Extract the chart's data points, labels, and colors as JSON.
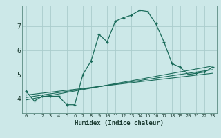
{
  "title": "",
  "xlabel": "Humidex (Indice chaleur)",
  "bg_color": "#cce8e8",
  "grid_color": "#aacccc",
  "line_color": "#1a6b5a",
  "xlim": [
    -0.5,
    23.5
  ],
  "ylim": [
    3.4,
    7.85
  ],
  "xticks": [
    0,
    1,
    2,
    3,
    4,
    5,
    6,
    7,
    8,
    9,
    10,
    11,
    12,
    13,
    14,
    15,
    16,
    17,
    18,
    19,
    20,
    21,
    22,
    23
  ],
  "yticks": [
    4,
    5,
    6,
    7
  ],
  "main_x": [
    0,
    1,
    2,
    3,
    4,
    5,
    6,
    7,
    8,
    9,
    10,
    11,
    12,
    13,
    14,
    15,
    16,
    17,
    18,
    19,
    20,
    21,
    22,
    23
  ],
  "main_y": [
    4.3,
    3.9,
    4.1,
    4.1,
    4.1,
    3.75,
    3.75,
    5.0,
    5.55,
    6.65,
    6.35,
    7.2,
    7.35,
    7.45,
    7.65,
    7.6,
    7.1,
    6.35,
    5.45,
    5.3,
    5.0,
    5.05,
    5.1,
    5.3
  ],
  "line2_x": [
    0,
    23
  ],
  "line2_y": [
    4.05,
    5.2
  ],
  "line3_x": [
    0,
    23
  ],
  "line3_y": [
    3.95,
    5.35
  ],
  "line4_x": [
    0,
    23
  ],
  "line4_y": [
    4.15,
    5.05
  ]
}
